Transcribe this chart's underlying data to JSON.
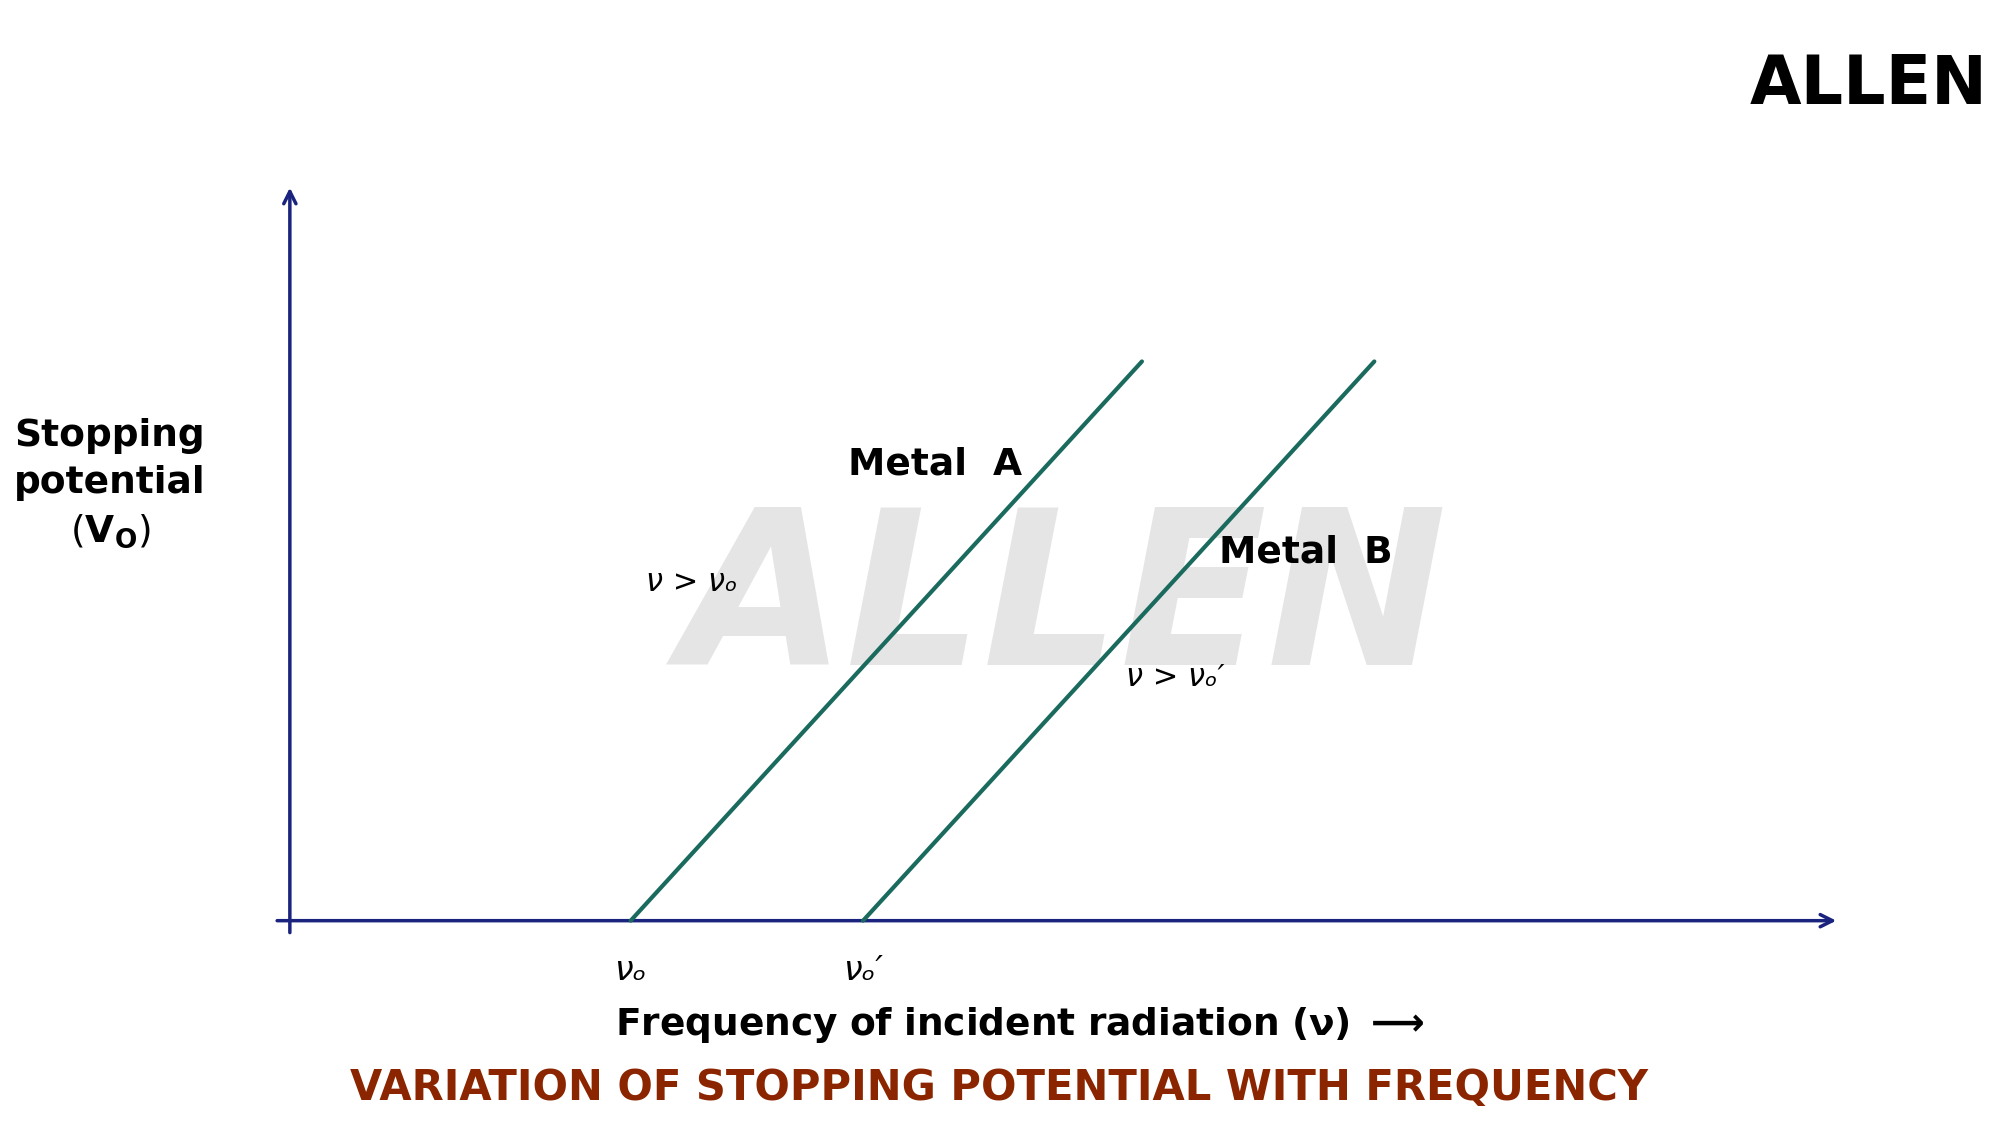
{
  "background_color": "#ffffff",
  "title": "VARIATION OF STOPPING POTENTIAL WITH FREQUENCY",
  "title_color": "#8B2500",
  "title_fontsize": 30,
  "axis_color": "#1a237e",
  "line_color": "#1a6b5e",
  "line_width": 3.0,
  "metal_a_label": "Metal  A",
  "metal_b_label": "Metal  B",
  "nu_gt_nu0_a": "ν > νₒ",
  "nu_gt_nu0_b": "ν > νₒ′",
  "nu0_label": "νₒ",
  "nu0_prime_label": "νₒ′",
  "watermark_color": "#cccccc",
  "watermark_alpha": 0.5
}
